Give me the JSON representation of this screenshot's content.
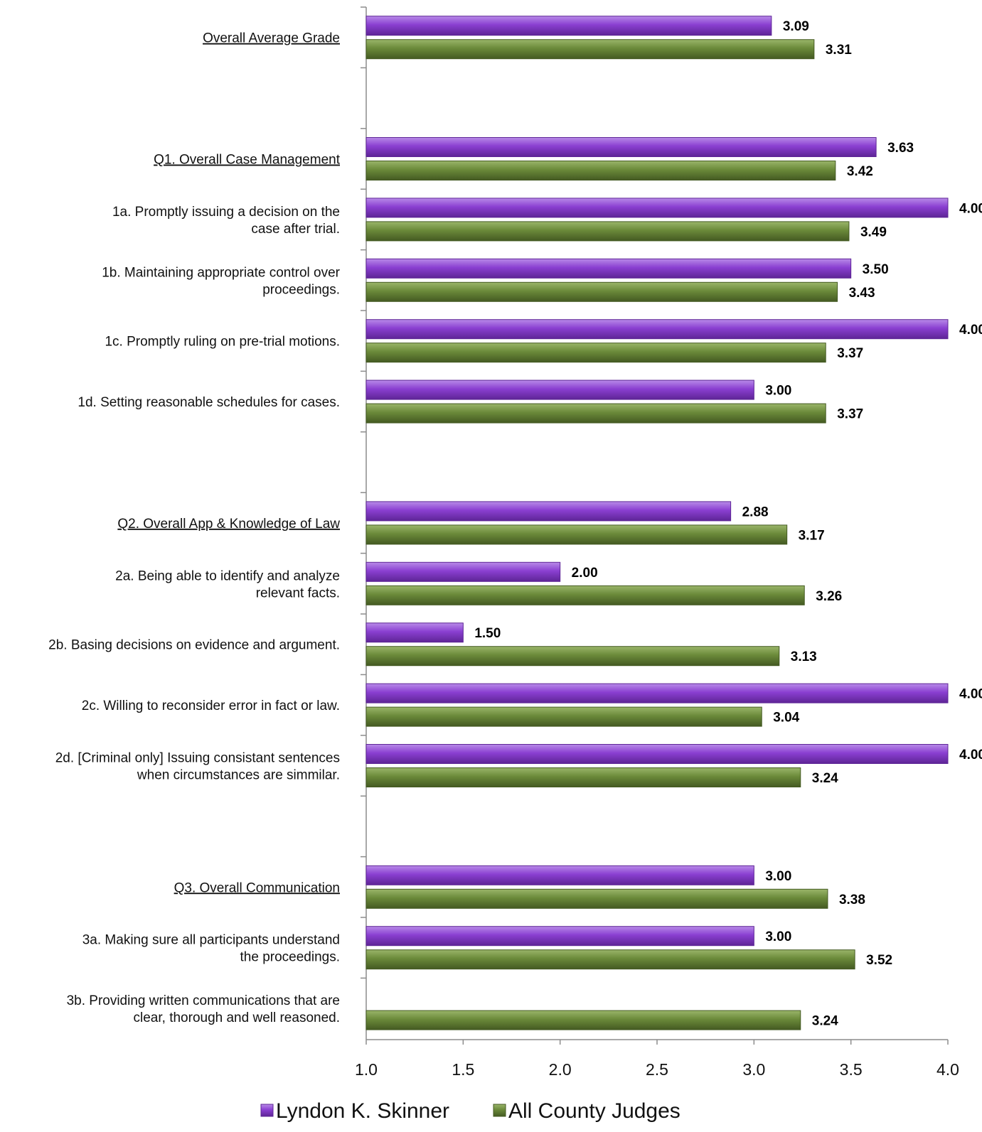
{
  "chart_data": {
    "type": "bar",
    "orientation": "horizontal",
    "xlim": [
      1.0,
      4.0
    ],
    "xticks": [
      "1.0",
      "1.5",
      "2.0",
      "2.5",
      "3.0",
      "3.5",
      "4.0"
    ],
    "grid": false,
    "legend_position": "bottom",
    "colors": {
      "judge": "#8a3fd1",
      "all": "#6b8a3a"
    },
    "series": [
      {
        "name": "Lyndon K. Skinner",
        "key": "judge"
      },
      {
        "name": "All County Judges",
        "key": "all"
      }
    ],
    "groups": [
      {
        "blank": false,
        "rows": [
          {
            "lines": [
              "Overall Average Grade"
            ],
            "underline": true,
            "judge": 3.09,
            "judge_label": "3.09",
            "all": 3.31,
            "all_label": "3.31"
          }
        ]
      },
      {
        "blank": true,
        "rows": []
      },
      {
        "blank": false,
        "rows": [
          {
            "lines": [
              "Q1. Overall Case Management"
            ],
            "underline": true,
            "judge": 3.63,
            "judge_label": "3.63",
            "all": 3.42,
            "all_label": "3.42"
          },
          {
            "lines": [
              "1a. Promptly issuing a decision on the",
              "case after trial."
            ],
            "underline": false,
            "judge": 4.0,
            "judge_label": "4.00",
            "all": 3.49,
            "all_label": "3.49"
          },
          {
            "lines": [
              "1b. Maintaining appropriate control over",
              "proceedings."
            ],
            "underline": false,
            "judge": 3.5,
            "judge_label": "3.50",
            "all": 3.43,
            "all_label": "3.43"
          },
          {
            "lines": [
              "1c. Promptly ruling on pre-trial motions."
            ],
            "underline": false,
            "judge": 4.0,
            "judge_label": "4.00",
            "all": 3.37,
            "all_label": "3.37"
          },
          {
            "lines": [
              "1d. Setting reasonable schedules for cases."
            ],
            "underline": false,
            "judge": 3.0,
            "judge_label": "3.00",
            "all": 3.37,
            "all_label": "3.37"
          }
        ]
      },
      {
        "blank": true,
        "rows": []
      },
      {
        "blank": false,
        "rows": [
          {
            "lines": [
              "Q2. Overall App & Knowledge of Law"
            ],
            "underline": true,
            "judge": 2.88,
            "judge_label": "2.88",
            "all": 3.17,
            "all_label": "3.17"
          },
          {
            "lines": [
              "2a. Being able to identify and analyze",
              "relevant facts."
            ],
            "underline": false,
            "judge": 2.0,
            "judge_label": "2.00",
            "all": 3.26,
            "all_label": "3.26"
          },
          {
            "lines": [
              "2b. Basing decisions on evidence and argument."
            ],
            "underline": false,
            "judge": 1.5,
            "judge_label": "1.50",
            "all": 3.13,
            "all_label": "3.13"
          },
          {
            "lines": [
              "2c. Willing to reconsider error in fact or law."
            ],
            "underline": false,
            "judge": 4.0,
            "judge_label": "4.00",
            "all": 3.04,
            "all_label": "3.04"
          },
          {
            "lines": [
              "2d. [Criminal only] Issuing consistant sentences",
              "when circumstances are simmilar."
            ],
            "underline": false,
            "judge": 4.0,
            "judge_label": "4.00",
            "all": 3.24,
            "all_label": "3.24"
          }
        ]
      },
      {
        "blank": true,
        "rows": []
      },
      {
        "blank": false,
        "rows": [
          {
            "lines": [
              "Q3. Overall Communication"
            ],
            "underline": true,
            "judge": 3.0,
            "judge_label": "3.00",
            "all": 3.38,
            "all_label": "3.38"
          },
          {
            "lines": [
              "3a. Making sure all participants understand",
              "the proceedings."
            ],
            "underline": false,
            "judge": 3.0,
            "judge_label": "3.00",
            "all": 3.52,
            "all_label": "3.52"
          },
          {
            "lines": [
              "3b. Providing written communications that are",
              "clear, thorough and well reasoned."
            ],
            "underline": false,
            "judge": null,
            "judge_label": null,
            "all": 3.24,
            "all_label": "3.24"
          }
        ]
      }
    ]
  }
}
